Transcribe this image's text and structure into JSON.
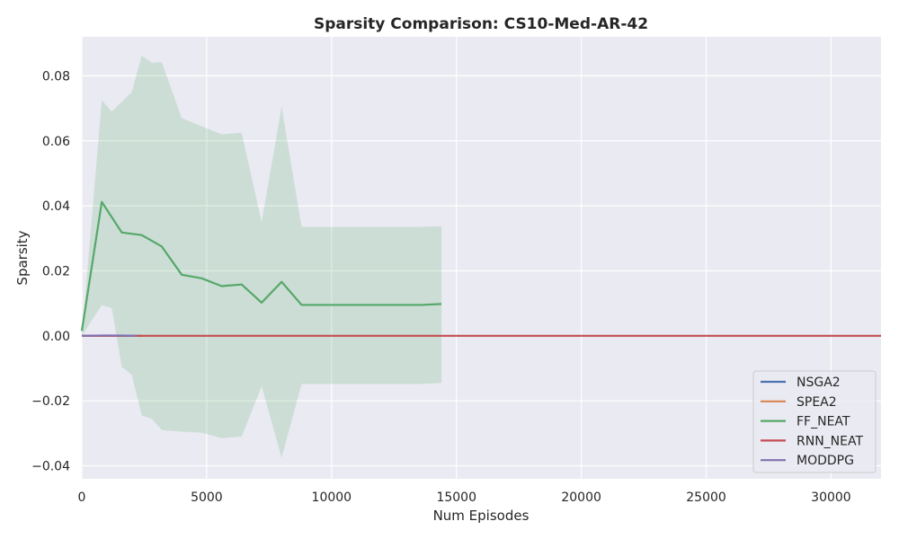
{
  "chart_data": {
    "type": "line",
    "title": "Sparsity Comparison: CS10-Med-AR-42",
    "xlabel": "Num Episodes",
    "ylabel": "Sparsity",
    "xlim": [
      0,
      32000
    ],
    "ylim": [
      -0.044,
      0.092
    ],
    "xticks": [
      0,
      5000,
      10000,
      15000,
      20000,
      25000,
      30000
    ],
    "yticks": [
      -0.04,
      -0.02,
      0.0,
      0.02,
      0.04,
      0.06,
      0.08
    ],
    "grid": true,
    "legend_position": "bottom-right",
    "series": [
      {
        "name": "NSGA2",
        "color": "#4c72b0",
        "x": [
          0,
          800,
          1600,
          2400
        ],
        "y": [
          0.0,
          0.0,
          0.0,
          0.0
        ]
      },
      {
        "name": "SPEA2",
        "color": "#dd8452",
        "x": [
          0,
          800,
          1600,
          2400
        ],
        "y": [
          0.0,
          0.0,
          0.0,
          0.0
        ]
      },
      {
        "name": "FF_NEAT",
        "color": "#55a868",
        "x": [
          0,
          800,
          1600,
          2400,
          3200,
          4000,
          4800,
          5600,
          6400,
          7200,
          8000,
          8800,
          9600,
          10400,
          11200,
          12000,
          12800,
          13600,
          14400
        ],
        "y": [
          0.0015,
          0.0412,
          0.0318,
          0.031,
          0.0275,
          0.0188,
          0.0177,
          0.0153,
          0.0158,
          0.0102,
          0.0166,
          0.0095,
          0.0095,
          0.0095,
          0.0095,
          0.0095,
          0.0095,
          0.0095,
          0.0098
        ],
        "band_x": [
          0,
          800,
          1200,
          1600,
          2000,
          2400,
          2800,
          3200,
          4000,
          4800,
          5600,
          6400,
          7200,
          8000,
          8800,
          9600,
          10400,
          11200,
          12000,
          12800,
          13600,
          14400
        ],
        "band_upper": [
          0.0,
          0.0725,
          0.069,
          0.072,
          0.075,
          0.0862,
          0.084,
          0.0842,
          0.067,
          0.0645,
          0.062,
          0.0625,
          0.035,
          0.0705,
          0.0335,
          0.0335,
          0.0335,
          0.0335,
          0.0335,
          0.0335,
          0.0335,
          0.0337
        ],
        "band_lower": [
          0.0,
          0.0095,
          0.0085,
          -0.0095,
          -0.012,
          -0.0245,
          -0.0255,
          -0.029,
          -0.0295,
          -0.0298,
          -0.0315,
          -0.031,
          -0.0155,
          -0.0375,
          -0.0148,
          -0.0148,
          -0.0148,
          -0.0148,
          -0.0148,
          -0.0148,
          -0.0148,
          -0.0145
        ]
      },
      {
        "name": "RNN_NEAT",
        "color": "#c44e52",
        "x": [
          0,
          4000,
          8000,
          12000,
          16000,
          20000,
          24000,
          28000,
          32000
        ],
        "y": [
          0.0,
          0.0,
          0.0,
          0.0,
          0.0,
          0.0,
          0.0,
          0.0,
          0.0
        ]
      },
      {
        "name": "MODDPG",
        "color": "#8172b3",
        "x": [
          0,
          800,
          1600,
          2200
        ],
        "y": [
          0.0,
          0.0001,
          0.0001,
          0.0
        ]
      }
    ]
  }
}
